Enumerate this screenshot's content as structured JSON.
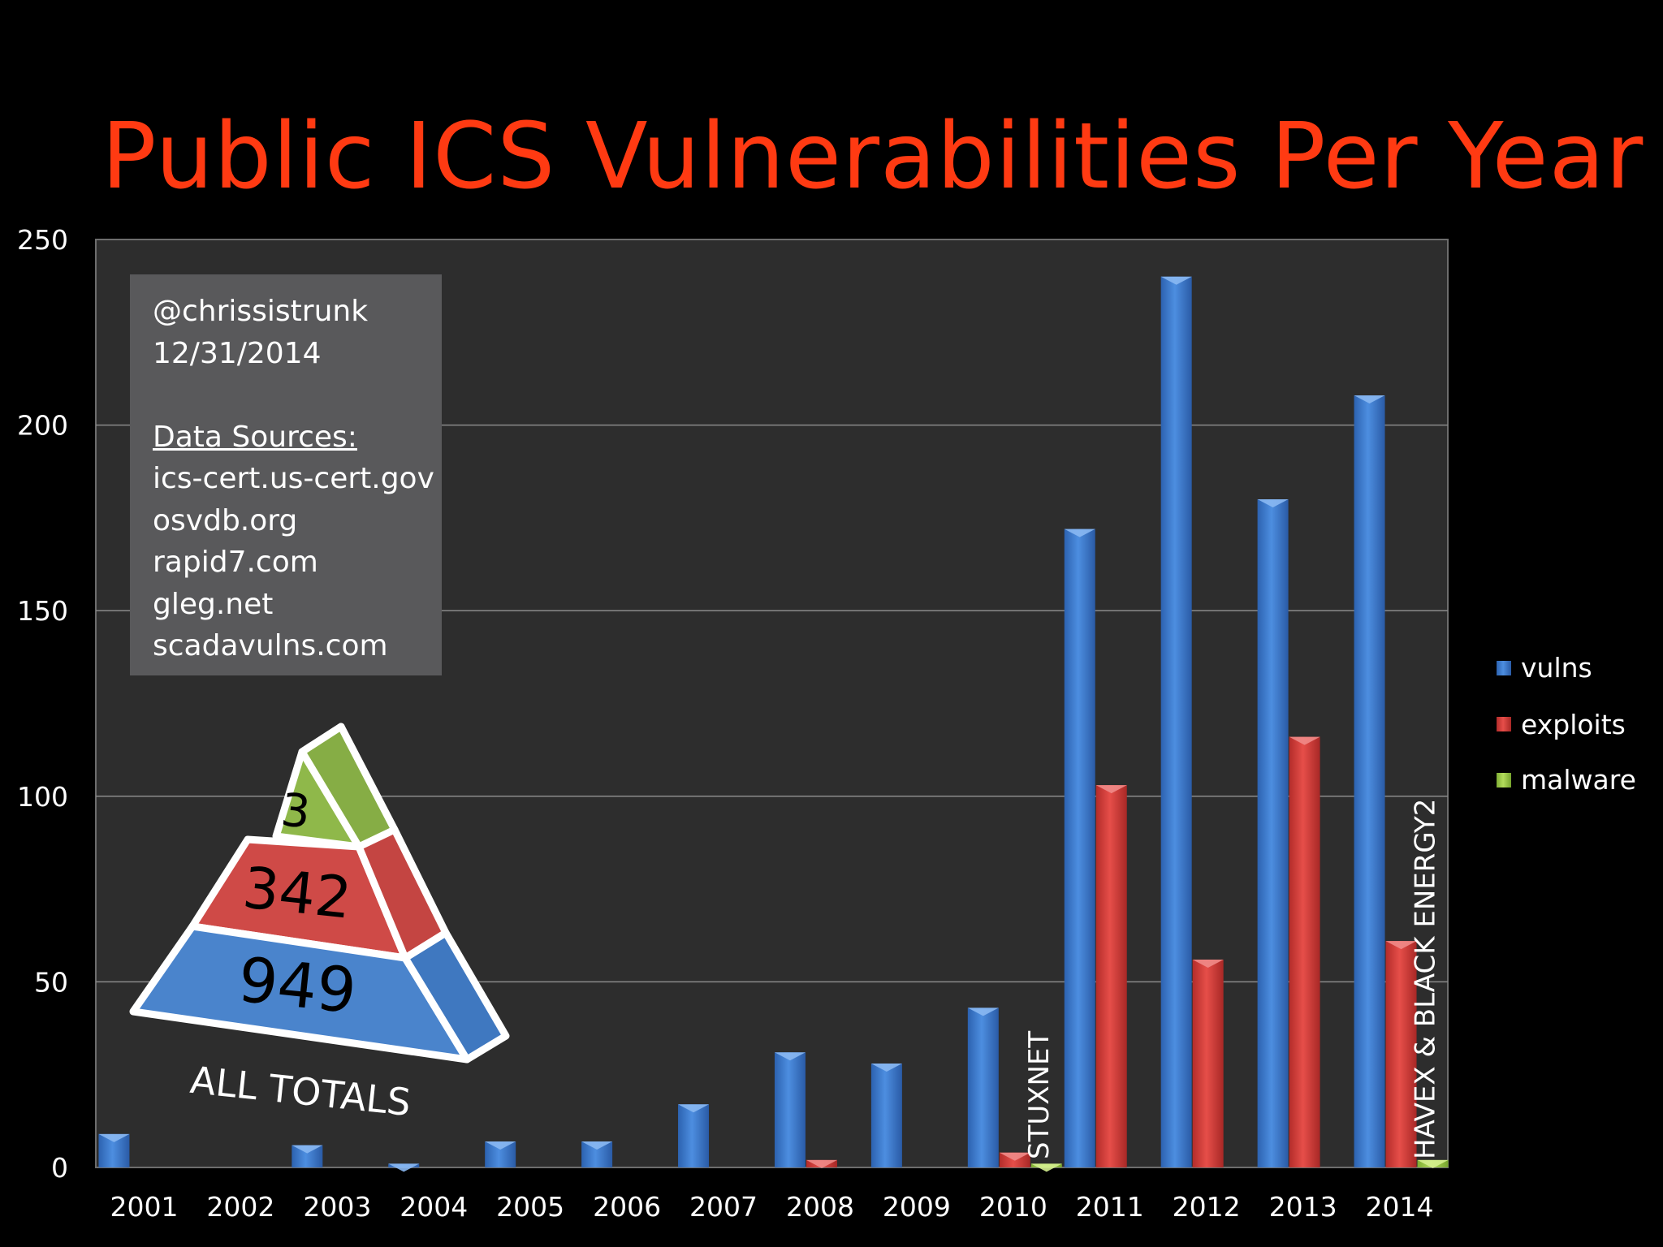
{
  "title": "Public ICS Vulnerabilities Per Year",
  "info_box": {
    "author": "@chrissistrunk",
    "date": "12/31/2014",
    "sources_heading": "Data Sources:",
    "sources": [
      "ics-cert.us-cert.gov",
      "osvdb.org",
      "rapid7.com",
      "gleg.net",
      "scadavulns.com"
    ]
  },
  "totals_pyramid": {
    "malware_total": "3",
    "exploits_total": "342",
    "vulns_total": "949",
    "label": "ALL TOTALS"
  },
  "annotations": [
    {
      "text": "STUXNET",
      "year": "2010",
      "series": "malware"
    },
    {
      "text": "HAVEX & BLACK ENERGY2",
      "year": "2014",
      "series": "malware"
    }
  ],
  "colors": {
    "vulns": "#3f7fd1",
    "exploits": "#d9403c",
    "malware": "#9fcf4a",
    "plot_background": "#2d2d2d",
    "title": "#ff3a12"
  },
  "chart_data": {
    "type": "bar",
    "title": "Public ICS Vulnerabilities Per Year",
    "categories": [
      "2001",
      "2002",
      "2003",
      "2004",
      "2005",
      "2006",
      "2007",
      "2008",
      "2009",
      "2010",
      "2011",
      "2012",
      "2013",
      "2014"
    ],
    "series": [
      {
        "name": "vulns",
        "values": [
          9,
          0,
          6,
          1,
          7,
          7,
          17,
          31,
          28,
          43,
          172,
          240,
          180,
          208
        ]
      },
      {
        "name": "exploits",
        "values": [
          0,
          0,
          0,
          0,
          0,
          0,
          0,
          2,
          0,
          4,
          103,
          56,
          116,
          61
        ]
      },
      {
        "name": "malware",
        "values": [
          0,
          0,
          0,
          0,
          0,
          0,
          0,
          0,
          0,
          1,
          0,
          0,
          0,
          2
        ]
      }
    ],
    "ylim": [
      0,
      250
    ],
    "yticks": [
      0,
      50,
      100,
      150,
      200,
      250
    ],
    "grid": true,
    "legend": "right"
  }
}
